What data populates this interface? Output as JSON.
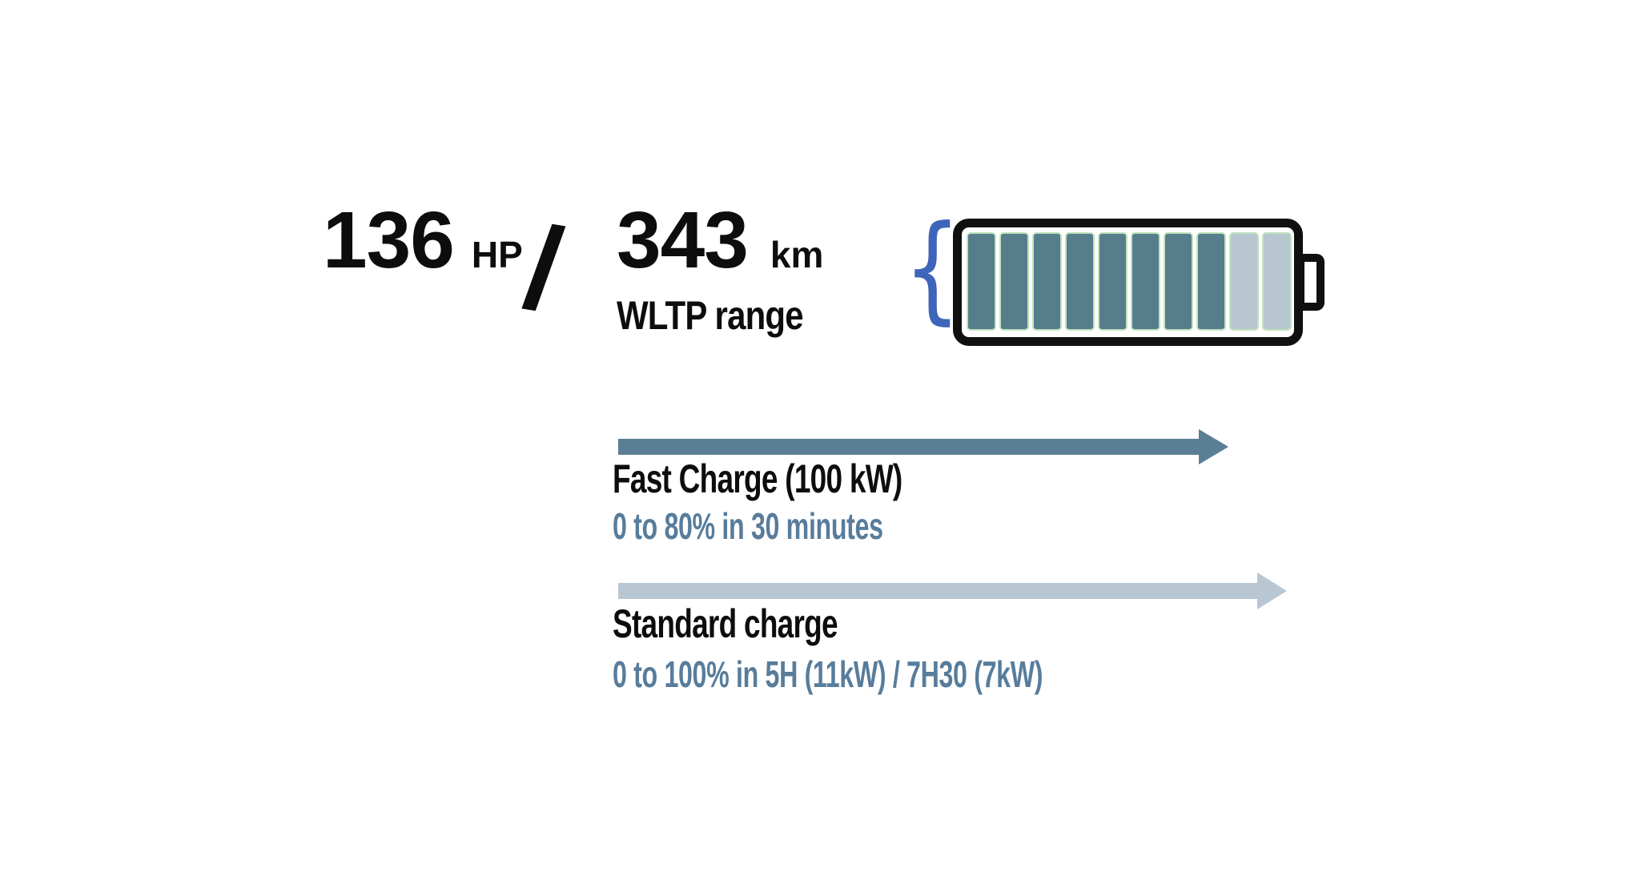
{
  "specs": {
    "power_value": "136",
    "power_unit": "HP",
    "separator": "/",
    "range_value": "343",
    "range_unit": "km",
    "range_label": "WLTP range"
  },
  "battery": {
    "total_segments": 10,
    "filled_segments": 8,
    "brace_glyph": "{"
  },
  "fast_charge": {
    "title": "Fast Charge (100 kW)",
    "subtitle": "0 to 80% in 30 minutes"
  },
  "standard_charge": {
    "title": "Standard charge",
    "subtitle": "0 to 100% in 5H (11kW) / 7H30 (7kW)"
  },
  "colors": {
    "background": "#ffffff",
    "text_primary": "#0d0d0d",
    "accent_text": "#587c9b",
    "fast_arrow": "#5a7e94",
    "standard_arrow": "#b9c7d3",
    "battery_filled": "#567d8b",
    "battery_empty": "#b8c6d0",
    "segment_border": "#c2e3c0",
    "battery_outline": "#101010",
    "brace_blue": "#3e65ba"
  }
}
